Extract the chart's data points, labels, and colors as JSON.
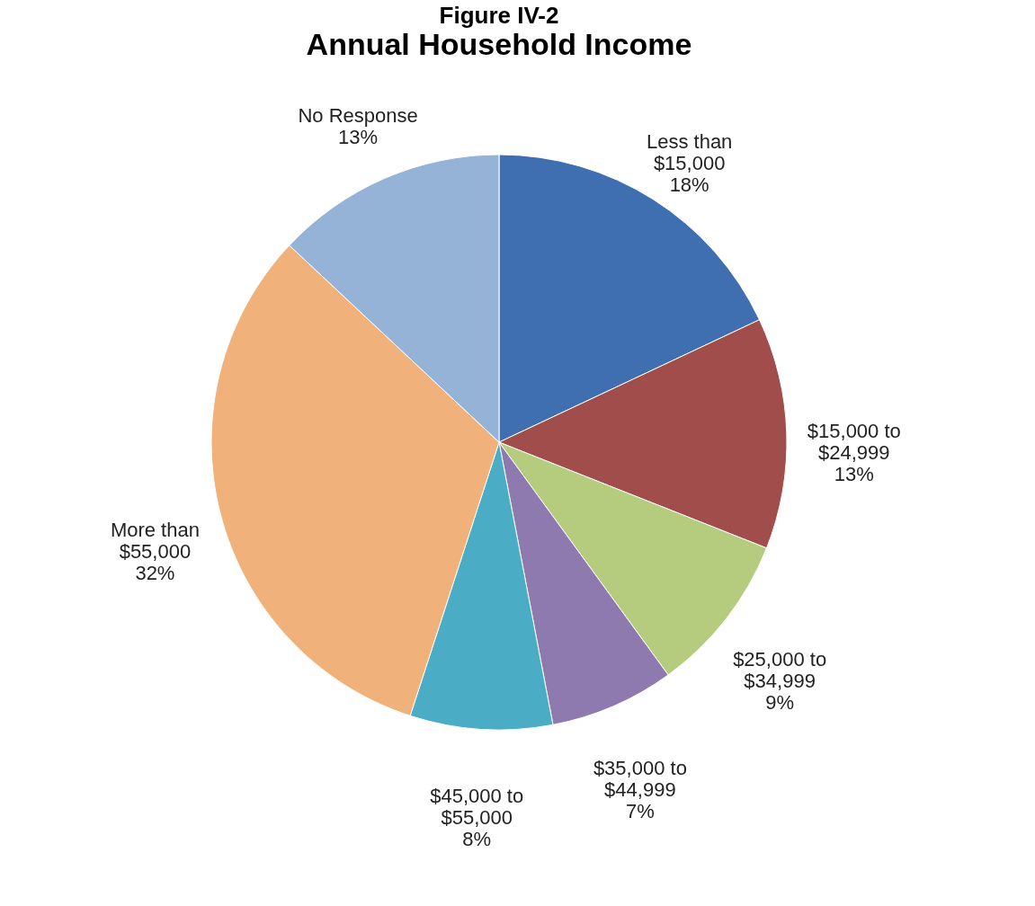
{
  "chart_data": {
    "type": "pie",
    "title": "Figure IV-2",
    "subtitle": "Annual Household Income",
    "categories": [
      "Less than\n$15,000",
      "$15,000 to\n$24,999",
      "$25,000 to\n$34,999",
      "$35,000 to\n$44,999",
      "$45,000 to\n$55,000",
      "More than\n$55,000",
      "No Response"
    ],
    "values": [
      18,
      13,
      9,
      7,
      8,
      32,
      13
    ],
    "colors": [
      "#3f6fb0",
      "#a04d4b",
      "#b5cc7e",
      "#8f7ab0",
      "#4bacc6",
      "#f0b27a",
      "#95b3d7"
    ],
    "value_labels": [
      "18%",
      "13%",
      "9%",
      "7%",
      "8%",
      "32%",
      "13%"
    ],
    "legend": false
  }
}
